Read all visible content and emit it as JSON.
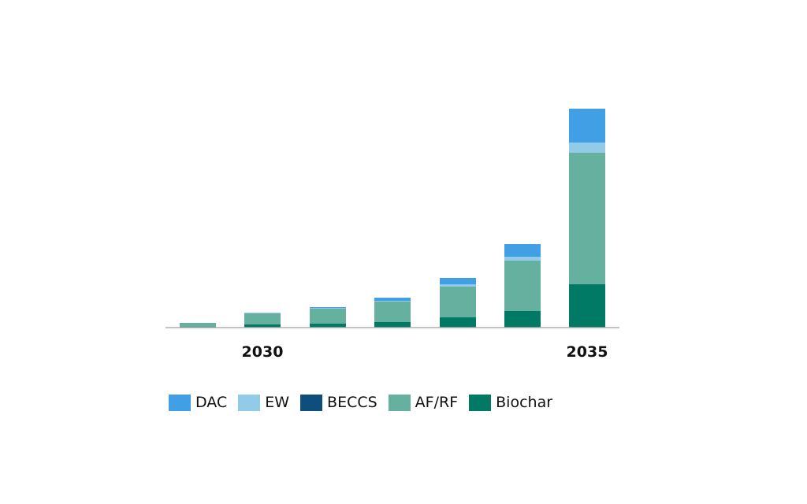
{
  "chart_data": {
    "type": "bar",
    "stacked": true,
    "title": "",
    "xlabel": "",
    "ylabel": "",
    "categories": [
      "",
      "2030",
      "",
      "",
      "",
      "",
      "2035"
    ],
    "tick_labels_shown": [
      "2030",
      "2035"
    ],
    "ylim": [
      0,
      280
    ],
    "grid": false,
    "legend_position": "bottom",
    "series": [
      {
        "name": "Biochar",
        "color": "#007a65",
        "values": [
          1,
          4,
          5,
          7,
          13,
          21,
          55
        ]
      },
      {
        "name": "AF/RF",
        "color": "#66b0a0",
        "values": [
          5,
          14,
          19,
          26,
          39,
          64,
          167
        ]
      },
      {
        "name": "BECCS",
        "color": "#0e4e7c",
        "values": [
          0,
          0,
          0,
          0,
          0,
          0,
          0
        ]
      },
      {
        "name": "EW",
        "color": "#92cbe8",
        "values": [
          0,
          1,
          1,
          1,
          3,
          5,
          13
        ]
      },
      {
        "name": "DAC",
        "color": "#41a0e5",
        "values": [
          0,
          0,
          1,
          4,
          8,
          16,
          43
        ]
      }
    ],
    "legend_order": [
      "DAC",
      "EW",
      "BECCS",
      "AF/RF",
      "Biochar"
    ]
  }
}
